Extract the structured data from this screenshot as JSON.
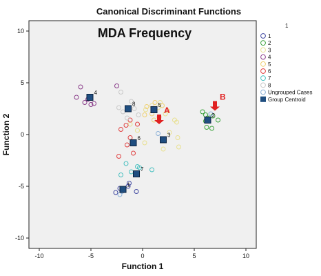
{
  "chart_data": {
    "type": "scatter",
    "title": "Canonical Discriminant Functions",
    "overlay_title": "MDA Frequency",
    "legend_header": "1",
    "xlabel": "Function 1",
    "ylabel": "Function 2",
    "xlim": [
      -11,
      11
    ],
    "ylim": [
      -11,
      11
    ],
    "xticks": [
      -10,
      -5,
      0,
      5,
      10
    ],
    "yticks": [
      -10,
      -5,
      0,
      5,
      10
    ],
    "grid": false,
    "legend_position": "right",
    "background_color": "#f0f0f0",
    "groups": [
      {
        "name": "1",
        "color": "#3f47a0",
        "points": [
          [
            -2.6,
            -5.6
          ],
          [
            -1.8,
            -5.4
          ],
          [
            -1.4,
            -5.0
          ],
          [
            -0.6,
            -5.5
          ],
          [
            -1.3,
            -4.7
          ],
          [
            -2.2,
            -5.2
          ]
        ]
      },
      {
        "name": "2",
        "color": "#3aa23a",
        "points": [
          [
            5.8,
            2.2
          ],
          [
            6.1,
            1.9
          ],
          [
            6.3,
            1.6
          ],
          [
            6.8,
            1.8
          ],
          [
            6.2,
            0.7
          ],
          [
            6.7,
            0.6
          ],
          [
            7.3,
            1.4
          ],
          [
            6.1,
            1.3
          ]
        ]
      },
      {
        "name": "3",
        "color": "#e8e090",
        "points": [
          [
            0.3,
            2.4
          ],
          [
            0.9,
            2.8
          ],
          [
            1.5,
            2.6
          ],
          [
            2.2,
            2.0
          ],
          [
            3.1,
            1.4
          ],
          [
            3.3,
            1.2
          ],
          [
            2.6,
            0.2
          ],
          [
            3.4,
            -0.3
          ],
          [
            3.5,
            -1.2
          ],
          [
            2.0,
            -1.4
          ],
          [
            0.2,
            -0.8
          ],
          [
            -0.5,
            0.4
          ],
          [
            -1.2,
            1.0
          ],
          [
            1.7,
            3.1
          ]
        ]
      },
      {
        "name": "4",
        "color": "#8a3d8a",
        "points": [
          [
            -6.0,
            4.6
          ],
          [
            -5.3,
            3.4
          ],
          [
            -6.4,
            3.6
          ],
          [
            -5.6,
            3.1
          ],
          [
            -5.0,
            2.9
          ],
          [
            -4.7,
            3.0
          ],
          [
            -2.5,
            4.7
          ]
        ]
      },
      {
        "name": "5",
        "color": "#f0d070",
        "points": [
          [
            0.4,
            2.7
          ],
          [
            1.2,
            3.1
          ],
          [
            1.9,
            2.8
          ],
          [
            2.4,
            2.3
          ],
          [
            0.9,
            2.0
          ],
          [
            1.6,
            1.7
          ],
          [
            0.2,
            1.9
          ],
          [
            1.1,
            1.4
          ]
        ]
      },
      {
        "name": "6",
        "color": "#e04040",
        "points": [
          [
            -1.2,
            1.4
          ],
          [
            -0.5,
            1.0
          ],
          [
            -2.3,
            -2.1
          ],
          [
            -2.1,
            0.5
          ],
          [
            -1.6,
            0.9
          ],
          [
            -1.2,
            -0.3
          ],
          [
            -0.9,
            -1.8
          ],
          [
            -1.5,
            -1.0
          ]
        ]
      },
      {
        "name": "7",
        "color": "#49c0c0",
        "points": [
          [
            -1.6,
            -2.8
          ],
          [
            -0.5,
            -3.1
          ],
          [
            0.9,
            -3.4
          ],
          [
            -1.1,
            -3.6
          ],
          [
            -0.3,
            -3.2
          ],
          [
            -2.1,
            -3.9
          ]
        ]
      },
      {
        "name": "8",
        "color": "#c8c8c8",
        "points": [
          [
            -2.3,
            2.6
          ],
          [
            -1.1,
            3.2
          ],
          [
            -0.8,
            2.5
          ],
          [
            -2.1,
            4.1
          ],
          [
            -1.9,
            2.2
          ],
          [
            -0.4,
            1.9
          ],
          [
            -1.5,
            1.6
          ]
        ]
      }
    ],
    "ungrouped_cases": {
      "name": "Ungrouped Cases",
      "color": "#8ab0d8",
      "points": [
        [
          1.5,
          0.1
        ],
        [
          6.6,
          2.0
        ],
        [
          -2.2,
          -5.8
        ],
        [
          -2.0,
          -5.5
        ]
      ]
    },
    "group_centroids": {
      "name": "Group Centroid",
      "color": "#1f4e80",
      "points": [
        {
          "label": "1",
          "x": -1.9,
          "y": -5.3
        },
        {
          "label": "2",
          "x": 6.3,
          "y": 1.4
        },
        {
          "label": "3",
          "x": 2.0,
          "y": -0.5
        },
        {
          "label": "4",
          "x": -5.1,
          "y": 3.6
        },
        {
          "label": "5",
          "x": 1.1,
          "y": 2.4
        },
        {
          "label": "6",
          "x": -0.9,
          "y": -0.8
        },
        {
          "label": "7",
          "x": -0.6,
          "y": -3.8
        },
        {
          "label": "8",
          "x": -1.4,
          "y": 2.5
        }
      ]
    },
    "annotations": [
      {
        "label": "A",
        "x": 1.6,
        "y": 1.0,
        "color": "#e02020"
      },
      {
        "label": "B",
        "x": 7.0,
        "y": 2.3,
        "color": "#e02020"
      }
    ]
  }
}
